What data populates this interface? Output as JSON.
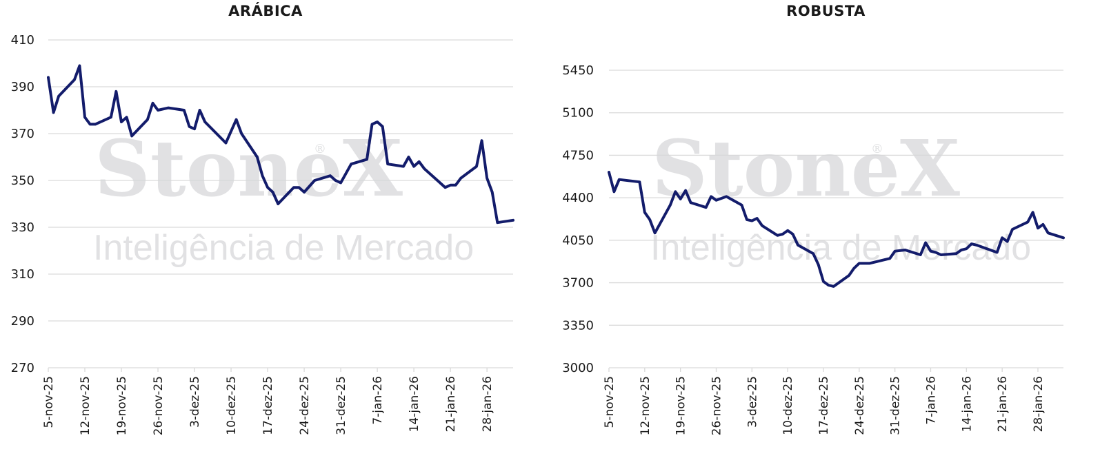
{
  "watermark": {
    "brand": "StoneX",
    "registered": "®",
    "tagline": "Inteligência de Mercado"
  },
  "colors": {
    "line": "#131c6b",
    "grid": "#d9d9d9",
    "text": "#1a1a1a",
    "watermark": "#d7d8da"
  },
  "chart_data": [
    {
      "type": "line",
      "title": "ARÁBICA",
      "xlabel": "",
      "ylabel": "",
      "ylim": [
        270,
        410
      ],
      "yticks": [
        270,
        290,
        310,
        330,
        350,
        370,
        390,
        410
      ],
      "xlim": [
        "2025-11-05",
        "2026-02-02"
      ],
      "xticks": [
        {
          "date": "2025-11-05",
          "label": "5-nov-25"
        },
        {
          "date": "2025-11-12",
          "label": "12-nov-25"
        },
        {
          "date": "2025-11-19",
          "label": "19-nov-25"
        },
        {
          "date": "2025-11-26",
          "label": "26-nov-25"
        },
        {
          "date": "2025-12-03",
          "label": "3-dez-25"
        },
        {
          "date": "2025-12-10",
          "label": "10-dez-25"
        },
        {
          "date": "2025-12-17",
          "label": "17-dez-25"
        },
        {
          "date": "2025-12-24",
          "label": "24-dez-25"
        },
        {
          "date": "2025-12-31",
          "label": "31-dez-25"
        },
        {
          "date": "2026-01-07",
          "label": "7-jan-26"
        },
        {
          "date": "2026-01-14",
          "label": "14-jan-26"
        },
        {
          "date": "2026-01-21",
          "label": "21-jan-26"
        },
        {
          "date": "2026-01-28",
          "label": "28-jan-26"
        }
      ],
      "grid": true,
      "series": [
        {
          "color": "#131c6b",
          "points": [
            [
              "2025-11-05",
              394
            ],
            [
              "2025-11-06",
              379
            ],
            [
              "2025-11-07",
              386
            ],
            [
              "2025-11-10",
              393
            ],
            [
              "2025-11-11",
              399
            ],
            [
              "2025-11-12",
              377
            ],
            [
              "2025-11-13",
              374
            ],
            [
              "2025-11-14",
              374
            ],
            [
              "2025-11-17",
              377
            ],
            [
              "2025-11-18",
              388
            ],
            [
              "2025-11-19",
              375
            ],
            [
              "2025-11-20",
              377
            ],
            [
              "2025-11-21",
              369
            ],
            [
              "2025-11-24",
              376
            ],
            [
              "2025-11-25",
              383
            ],
            [
              "2025-11-26",
              380
            ],
            [
              "2025-11-28",
              381
            ],
            [
              "2025-12-01",
              380
            ],
            [
              "2025-12-02",
              373
            ],
            [
              "2025-12-03",
              372
            ],
            [
              "2025-12-04",
              380
            ],
            [
              "2025-12-05",
              375
            ],
            [
              "2025-12-09",
              366
            ],
            [
              "2025-12-11",
              376
            ],
            [
              "2025-12-12",
              370
            ],
            [
              "2025-12-15",
              360
            ],
            [
              "2025-12-16",
              352
            ],
            [
              "2025-12-17",
              347
            ],
            [
              "2025-12-18",
              345
            ],
            [
              "2025-12-19",
              340
            ],
            [
              "2025-12-22",
              347
            ],
            [
              "2025-12-23",
              347
            ],
            [
              "2025-12-24",
              345
            ],
            [
              "2025-12-26",
              350
            ],
            [
              "2025-12-29",
              352
            ],
            [
              "2025-12-30",
              350
            ],
            [
              "2025-12-31",
              349
            ],
            [
              "2026-01-02",
              357
            ],
            [
              "2026-01-05",
              359
            ],
            [
              "2026-01-06",
              374
            ],
            [
              "2026-01-07",
              375
            ],
            [
              "2026-01-08",
              373
            ],
            [
              "2026-01-09",
              357
            ],
            [
              "2026-01-12",
              356
            ],
            [
              "2026-01-13",
              360
            ],
            [
              "2026-01-14",
              356
            ],
            [
              "2026-01-15",
              358
            ],
            [
              "2026-01-16",
              355
            ],
            [
              "2026-01-20",
              347
            ],
            [
              "2026-01-21",
              348
            ],
            [
              "2026-01-22",
              348
            ],
            [
              "2026-01-23",
              351
            ],
            [
              "2026-01-26",
              356
            ],
            [
              "2026-01-27",
              367
            ],
            [
              "2026-01-28",
              351
            ],
            [
              "2026-01-29",
              345
            ],
            [
              "2026-01-30",
              332
            ],
            [
              "2026-02-02",
              333
            ]
          ]
        }
      ]
    },
    {
      "type": "line",
      "title": "ROBUSTA",
      "xlabel": "",
      "ylabel": "",
      "ylim": [
        3000,
        5450
      ],
      "yticks": [
        3000,
        3350,
        3700,
        4050,
        4400,
        4750,
        5100,
        5450
      ],
      "xlim": [
        "2025-11-05",
        "2026-02-02"
      ],
      "xticks": [
        {
          "date": "2025-11-05",
          "label": "5-nov-25"
        },
        {
          "date": "2025-11-12",
          "label": "12-nov-25"
        },
        {
          "date": "2025-11-19",
          "label": "19-nov-25"
        },
        {
          "date": "2025-11-26",
          "label": "26-nov-25"
        },
        {
          "date": "2025-12-03",
          "label": "3-dez-25"
        },
        {
          "date": "2025-12-10",
          "label": "10-dez-25"
        },
        {
          "date": "2025-12-17",
          "label": "17-dez-25"
        },
        {
          "date": "2025-12-24",
          "label": "24-dez-25"
        },
        {
          "date": "2025-12-31",
          "label": "31-dez-25"
        },
        {
          "date": "2026-01-07",
          "label": "7-jan-26"
        },
        {
          "date": "2026-01-14",
          "label": "14-jan-26"
        },
        {
          "date": "2026-01-21",
          "label": "21-jan-26"
        },
        {
          "date": "2026-01-28",
          "label": "28-jan-26"
        }
      ],
      "grid": true,
      "series": [
        {
          "color": "#131c6b",
          "points": [
            [
              "2025-11-05",
              4610
            ],
            [
              "2025-11-06",
              4450
            ],
            [
              "2025-11-07",
              4550
            ],
            [
              "2025-11-11",
              4530
            ],
            [
              "2025-11-12",
              4280
            ],
            [
              "2025-11-13",
              4220
            ],
            [
              "2025-11-14",
              4110
            ],
            [
              "2025-11-17",
              4340
            ],
            [
              "2025-11-18",
              4450
            ],
            [
              "2025-11-19",
              4390
            ],
            [
              "2025-11-20",
              4460
            ],
            [
              "2025-11-21",
              4360
            ],
            [
              "2025-11-24",
              4320
            ],
            [
              "2025-11-25",
              4410
            ],
            [
              "2025-11-26",
              4380
            ],
            [
              "2025-11-28",
              4410
            ],
            [
              "2025-12-01",
              4340
            ],
            [
              "2025-12-02",
              4220
            ],
            [
              "2025-12-03",
              4210
            ],
            [
              "2025-12-04",
              4230
            ],
            [
              "2025-12-05",
              4170
            ],
            [
              "2025-12-08",
              4090
            ],
            [
              "2025-12-09",
              4100
            ],
            [
              "2025-12-10",
              4130
            ],
            [
              "2025-12-11",
              4100
            ],
            [
              "2025-12-12",
              4010
            ],
            [
              "2025-12-15",
              3940
            ],
            [
              "2025-12-16",
              3850
            ],
            [
              "2025-12-17",
              3710
            ],
            [
              "2025-12-18",
              3680
            ],
            [
              "2025-12-19",
              3670
            ],
            [
              "2025-12-22",
              3760
            ],
            [
              "2025-12-23",
              3820
            ],
            [
              "2025-12-24",
              3860
            ],
            [
              "2025-12-26",
              3860
            ],
            [
              "2025-12-29",
              3890
            ],
            [
              "2025-12-30",
              3900
            ],
            [
              "2025-12-31",
              3960
            ],
            [
              "2026-01-02",
              3970
            ],
            [
              "2026-01-05",
              3930
            ],
            [
              "2026-01-06",
              4030
            ],
            [
              "2026-01-07",
              3960
            ],
            [
              "2026-01-08",
              3950
            ],
            [
              "2026-01-09",
              3930
            ],
            [
              "2026-01-12",
              3940
            ],
            [
              "2026-01-13",
              3970
            ],
            [
              "2026-01-14",
              3980
            ],
            [
              "2026-01-15",
              4020
            ],
            [
              "2026-01-16",
              4010
            ],
            [
              "2026-01-20",
              3950
            ],
            [
              "2026-01-21",
              4070
            ],
            [
              "2026-01-22",
              4040
            ],
            [
              "2026-01-23",
              4140
            ],
            [
              "2026-01-26",
              4200
            ],
            [
              "2026-01-27",
              4280
            ],
            [
              "2026-01-28",
              4150
            ],
            [
              "2026-01-29",
              4180
            ],
            [
              "2026-01-30",
              4110
            ],
            [
              "2026-02-02",
              4070
            ]
          ]
        }
      ]
    }
  ]
}
